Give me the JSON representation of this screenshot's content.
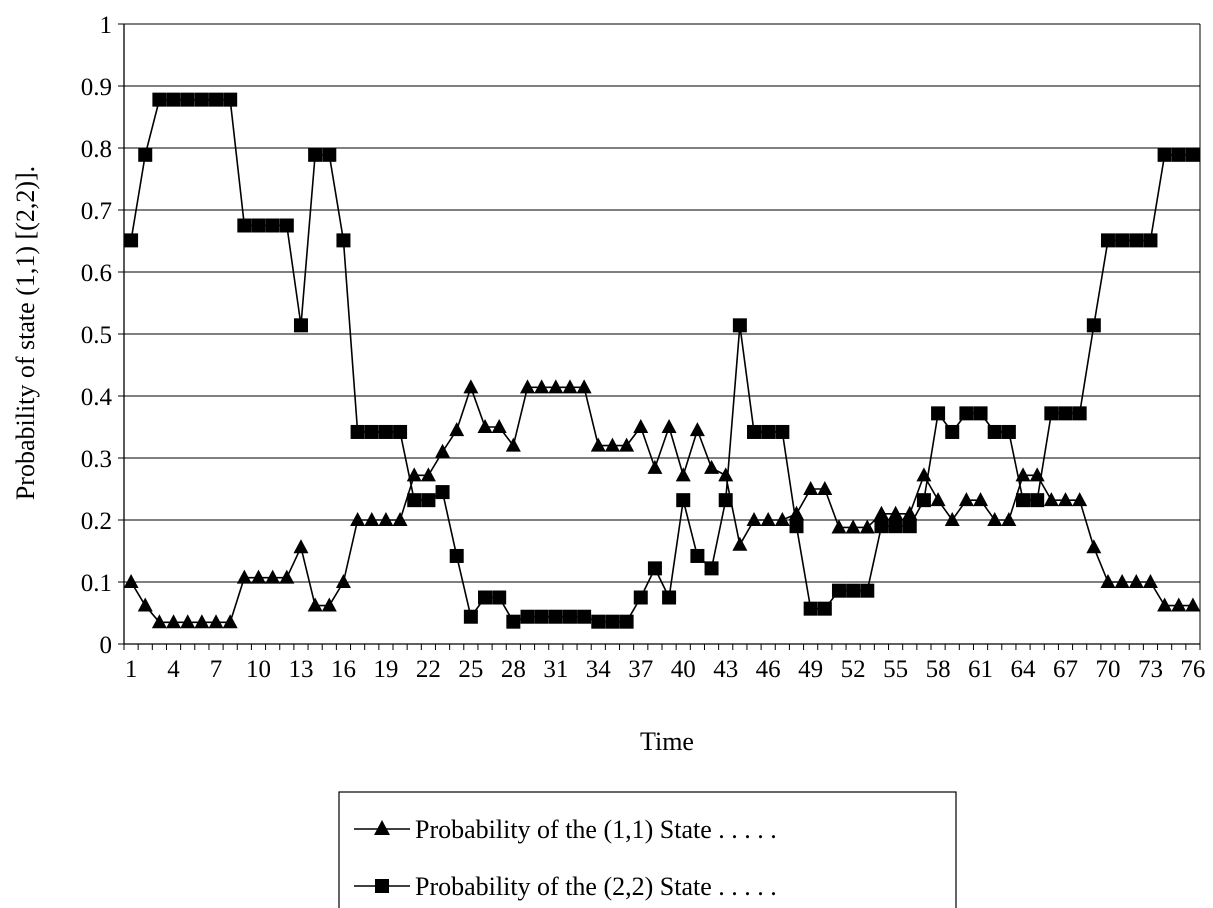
{
  "chart_data": {
    "type": "line",
    "xlabel": "Time",
    "ylabel": "Probability of state (1,1) [(2,2)].",
    "ylim": [
      0,
      1
    ],
    "yticks": [
      "0",
      "0.1",
      "0.2",
      "0.3",
      "0.4",
      "0.5",
      "0.6",
      "0.7",
      "0.8",
      "0.9",
      "1"
    ],
    "x": [
      1,
      2,
      3,
      4,
      5,
      6,
      7,
      8,
      9,
      10,
      11,
      12,
      13,
      14,
      15,
      16,
      17,
      18,
      19,
      20,
      21,
      22,
      23,
      24,
      25,
      26,
      27,
      28,
      29,
      30,
      31,
      32,
      33,
      34,
      35,
      36,
      37,
      38,
      39,
      40,
      41,
      42,
      43,
      44,
      45,
      46,
      47,
      48,
      49,
      50,
      51,
      52,
      53,
      54,
      55,
      56,
      57,
      58,
      59,
      60,
      61,
      62,
      63,
      64,
      65,
      66,
      67,
      68,
      69,
      70,
      71,
      72,
      73,
      74,
      75,
      76
    ],
    "xtick_labels": [
      "1",
      "4",
      "7",
      "10",
      "13",
      "16",
      "19",
      "22",
      "25",
      "28",
      "31",
      "34",
      "37",
      "40",
      "43",
      "46",
      "49",
      "52",
      "55",
      "58",
      "61",
      "64",
      "67",
      "70",
      "73",
      "76"
    ],
    "grid": "horizontal",
    "legend_position": "bottom",
    "series": [
      {
        "name": "Probability of the (1,1) State . . . . .",
        "marker": "triangle",
        "values": [
          0.1,
          0.062,
          0.035,
          0.035,
          0.035,
          0.035,
          0.035,
          0.035,
          0.107,
          0.107,
          0.107,
          0.107,
          0.156,
          0.062,
          0.062,
          0.1,
          0.2,
          0.2,
          0.2,
          0.2,
          0.272,
          0.272,
          0.31,
          0.345,
          0.414,
          0.35,
          0.35,
          0.32,
          0.414,
          0.414,
          0.414,
          0.414,
          0.414,
          0.32,
          0.32,
          0.32,
          0.35,
          0.284,
          0.35,
          0.272,
          0.345,
          0.284,
          0.272,
          0.16,
          0.2,
          0.2,
          0.2,
          0.21,
          0.25,
          0.25,
          0.188,
          0.188,
          0.188,
          0.21,
          0.21,
          0.21,
          0.272,
          0.232,
          0.2,
          0.232,
          0.232,
          0.2,
          0.2,
          0.272,
          0.272,
          0.232,
          0.232,
          0.232,
          0.156,
          0.1,
          0.1,
          0.1,
          0.1,
          0.062,
          0.062,
          0.062
        ]
      },
      {
        "name": "Probability of the (2,2) State . . . . .",
        "marker": "square",
        "values": [
          0.651,
          0.789,
          0.878,
          0.878,
          0.878,
          0.878,
          0.878,
          0.878,
          0.675,
          0.675,
          0.675,
          0.675,
          0.514,
          0.789,
          0.789,
          0.651,
          0.342,
          0.342,
          0.342,
          0.342,
          0.232,
          0.232,
          0.245,
          0.142,
          0.044,
          0.075,
          0.075,
          0.036,
          0.044,
          0.044,
          0.044,
          0.044,
          0.044,
          0.036,
          0.036,
          0.036,
          0.075,
          0.122,
          0.075,
          0.232,
          0.142,
          0.122,
          0.232,
          0.514,
          0.342,
          0.342,
          0.342,
          0.19,
          0.057,
          0.057,
          0.086,
          0.086,
          0.086,
          0.19,
          0.19,
          0.19,
          0.232,
          0.372,
          0.342,
          0.372,
          0.372,
          0.342,
          0.342,
          0.232,
          0.232,
          0.372,
          0.372,
          0.372,
          0.514,
          0.651,
          0.651,
          0.651,
          0.651,
          0.789,
          0.789,
          0.789
        ]
      }
    ]
  }
}
